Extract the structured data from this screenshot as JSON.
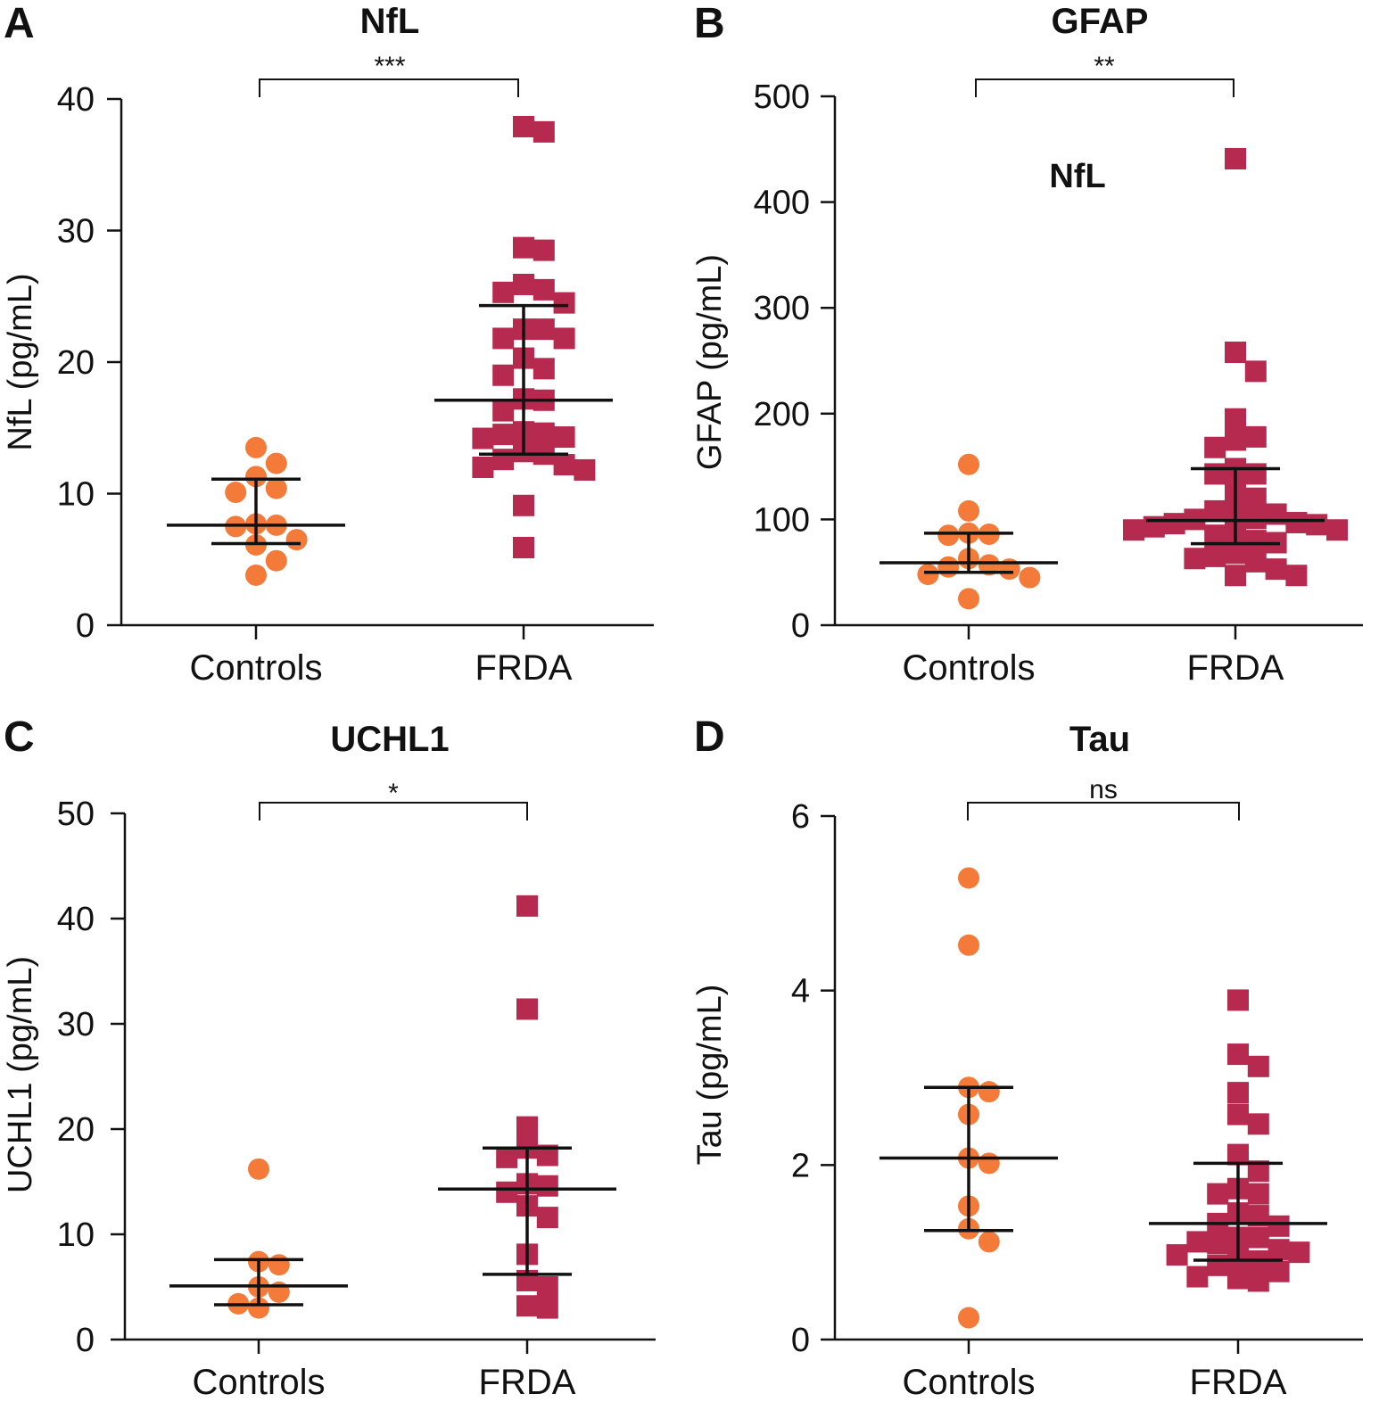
{
  "chart_data": [
    {
      "panel": "A",
      "type": "scatter",
      "title": "NfL",
      "ylabel": "NfL (pg/mL)",
      "xlabel": "",
      "ylim": [
        0,
        40
      ],
      "yticks": [
        0,
        10,
        20,
        30,
        40
      ],
      "categories": [
        "Controls",
        "FRDA"
      ],
      "significance": "***",
      "annotations": [],
      "series": [
        {
          "name": "Controls",
          "marker": "circle",
          "color": "#f47a3a",
          "values": [
            13.5,
            12.3,
            11.3,
            10.4,
            10.1,
            7.7,
            7.6,
            7.5,
            6.5,
            6.1,
            4.9,
            3.8
          ],
          "mean": 7.6,
          "err_low": 6.2,
          "err_high": 11.1
        },
        {
          "name": "FRDA",
          "marker": "square",
          "color": "#b52a4e",
          "values": [
            37.5,
            37.9,
            28.7,
            28.5,
            25.9,
            25.5,
            25.3,
            24.5,
            22.5,
            22.5,
            21.8,
            21.8,
            20.3,
            19.5,
            19.0,
            17.1,
            17.2,
            16.3,
            14.7,
            14.5,
            14.6,
            14.3,
            14.2,
            13.0,
            13.2,
            12.6,
            12.2,
            12.0,
            11.8,
            9.1,
            5.9
          ],
          "mean": 17.1,
          "err_low": 13.0,
          "err_high": 24.3
        }
      ]
    },
    {
      "panel": "B",
      "type": "scatter",
      "title": "GFAP",
      "ylabel": "GFAP (pg/mL)",
      "xlabel": "",
      "ylim": [
        0,
        500
      ],
      "yticks": [
        0,
        100,
        200,
        300,
        400,
        500
      ],
      "categories": [
        "Controls",
        "FRDA"
      ],
      "significance": "**",
      "annotations": [
        "NfL"
      ],
      "series": [
        {
          "name": "Controls",
          "marker": "circle",
          "color": "#f47a3a",
          "values": [
            152,
            108,
            87,
            85,
            86,
            63,
            57,
            55,
            53,
            48,
            45,
            25
          ],
          "mean": 59,
          "err_low": 50,
          "err_high": 87
        },
        {
          "name": "FRDA",
          "marker": "square",
          "color": "#b52a4e",
          "values": [
            441,
            258,
            240,
            195,
            175,
            178,
            168,
            148,
            143,
            143,
            128,
            120,
            108,
            108,
            105,
            101,
            100,
            97,
            96,
            95,
            93,
            90,
            90,
            88,
            85,
            80,
            78,
            68,
            65,
            63,
            60,
            53,
            47,
            47
          ],
          "mean": 99,
          "err_low": 77,
          "err_high": 148
        }
      ]
    },
    {
      "panel": "C",
      "type": "scatter",
      "title": "UCHL1",
      "ylabel": "UCHL1 (pg/mL)",
      "xlabel": "",
      "ylim": [
        0,
        50
      ],
      "yticks": [
        0,
        10,
        20,
        30,
        40,
        50
      ],
      "categories": [
        "Controls",
        "FRDA"
      ],
      "significance": "*",
      "annotations": [],
      "series": [
        {
          "name": "Controls",
          "marker": "circle",
          "color": "#f47a3a",
          "values": [
            16.2,
            7.4,
            7.1,
            5.0,
            4.5,
            3.4,
            3.0
          ],
          "mean": 5.1,
          "err_low": 3.3,
          "err_high": 7.6
        },
        {
          "name": "FRDA",
          "marker": "square",
          "color": "#b52a4e",
          "values": [
            41.2,
            31.4,
            20.2,
            18.2,
            17.3,
            17.5,
            14.8,
            14.6,
            14.0,
            12.7,
            11.6,
            8.1,
            5.6,
            5.0,
            3.2,
            3.0
          ],
          "mean": 14.3,
          "err_low": 6.2,
          "err_high": 18.2
        }
      ]
    },
    {
      "panel": "D",
      "type": "scatter",
      "title": "Tau",
      "ylabel": "Tau (pg/mL)",
      "xlabel": "",
      "ylim": [
        0,
        6
      ],
      "yticks": [
        0,
        2,
        4,
        6
      ],
      "categories": [
        "Controls",
        "FRDA"
      ],
      "significance": "ns",
      "annotations": [],
      "series": [
        {
          "name": "Controls",
          "marker": "circle",
          "color": "#f47a3a",
          "values": [
            5.29,
            4.52,
            2.89,
            2.84,
            2.58,
            2.08,
            2.02,
            1.53,
            1.27,
            1.12,
            0.25
          ],
          "mean": 2.08,
          "err_low": 1.25,
          "err_high": 2.89
        },
        {
          "name": "FRDA",
          "marker": "square",
          "color": "#b52a4e",
          "values": [
            3.89,
            3.27,
            3.13,
            2.83,
            2.58,
            2.47,
            2.12,
            1.93,
            1.73,
            1.67,
            1.67,
            1.45,
            1.42,
            1.33,
            1.3,
            1.17,
            1.17,
            1.12,
            1.1,
            1.03,
            1.0,
            0.97,
            0.93,
            0.9,
            0.85,
            0.78,
            0.72,
            0.7,
            0.67
          ],
          "mean": 1.33,
          "err_low": 0.91,
          "err_high": 2.02
        }
      ]
    }
  ]
}
